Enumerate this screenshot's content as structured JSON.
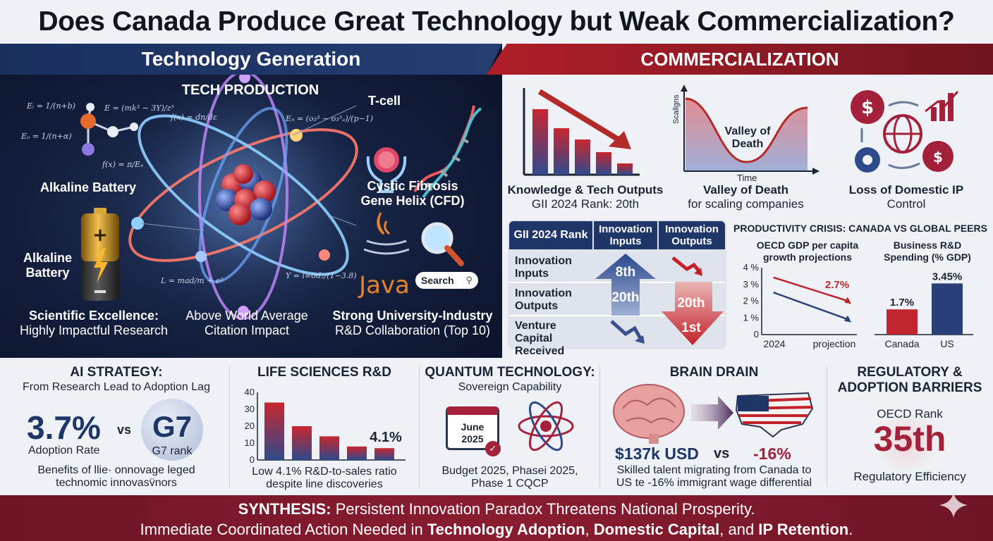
{
  "title": "Does Canada Produce Great Technology but Weak Commercialization?",
  "left": {
    "header": "Technology Generation",
    "tech_production": "TECH PRODUCTION",
    "tcell": "T-cell",
    "alkaline_battery_1": "Alkaline Battery",
    "alkaline_battery_2": "Alkaline Battery",
    "cystic_fibrosis": "Cystic Fibrosis Gene Helix (CFD)",
    "java": "Java",
    "search": "Search",
    "formulas": [
      "E_i = 1/(n+b)",
      "E = mk³ − 3Y / z³",
      "f(x) = dn/dε",
      "E_o = 1/(n+α)",
      "f(x) = π/E_e",
      "E_n = o₃³ − o₃³ₐ / p − 1",
      "L = mad/m + e²",
      "Y = l ∞ 0d₂ / (1 − 3.8)"
    ],
    "bottom": [
      {
        "line1": "Scientific Excellence:",
        "line2": "Highly Impactful Research"
      },
      {
        "line1": "Above World Average",
        "line2": "Citation Impact"
      },
      {
        "line1": "Strong University-Industry",
        "line2": "R&D Collaboration (Top 10)"
      }
    ]
  },
  "right": {
    "header": "COMMERCIALIZATION",
    "knowledge": {
      "title": "Knowledge & Tech Outputs",
      "sub": "GII 2024 Rank: 20th"
    },
    "valley": {
      "title": "Valley of Death",
      "sub": "for scaling companies",
      "label": "Valley of Death",
      "ylabel": "Scallgns",
      "xlabel": "Time"
    },
    "ip": {
      "title": "Loss of Domestic IP",
      "sub": "Control"
    },
    "gii_table": {
      "headers": [
        "GII 2024 Rank",
        "Innovation Inputs",
        "Innovation Outputs"
      ],
      "rows": [
        {
          "label": "Innovation Inputs",
          "inputs": "8th",
          "outputs": ""
        },
        {
          "label": "Innovation Outputs",
          "inputs": "20th",
          "outputs": "20th"
        },
        {
          "label": "Venture Capital Received",
          "inputs": "",
          "outputs": "1st"
        }
      ]
    },
    "productivity": {
      "title": "PRODUCTIVITY CRISIS: CANADA VS GLOBAL PEERS",
      "gdp_title": "OECD GDP per capita growth projections",
      "rd_title": "Business R&D Spending (% GDP)"
    }
  },
  "chart_data": [
    {
      "type": "line",
      "title": "OECD GDP per capita growth projections",
      "categories": [
        "2024",
        "projection"
      ],
      "yticks": [
        "0",
        "1 %",
        "2 %",
        "3 %",
        "4 %"
      ],
      "ylim": [
        0,
        4
      ],
      "series": [
        {
          "values": [
            3.4,
            2.0
          ],
          "color": "#c0262f"
        },
        {
          "values": [
            2.5,
            0.9
          ],
          "color": "#2b3f7a"
        }
      ],
      "annotation": "2.7%",
      "annotation_value": 2.7
    },
    {
      "type": "bar",
      "title": "Business R&D Spending (% GDP)",
      "categories": [
        "Canada",
        "US"
      ],
      "values": [
        1.7,
        3.45
      ],
      "labels": [
        "1.7%",
        "3.45%"
      ],
      "colors": [
        "#c0262f",
        "#2b3f7a"
      ],
      "ylim": [
        0,
        3.8
      ]
    },
    {
      "type": "bar",
      "title": "LIFE SCIENCES R&D",
      "categories": [
        "",
        "",
        "",
        "",
        ""
      ],
      "values": [
        34,
        20,
        14,
        8,
        7
      ],
      "yticks": [
        "0",
        "10",
        "20",
        "30",
        "40"
      ],
      "ylim": [
        0,
        40
      ],
      "annotation": "4.1%"
    }
  ],
  "bottom": {
    "ai": {
      "title": "AI STRATEGY:",
      "sub": "From Research Lead to Adoption Lag",
      "big": "3.7%",
      "big_label": "Adoption Rate",
      "vs": "vs",
      "g7": "G7",
      "g7_label": "G7 rank",
      "note1": "Benefits of llie· onnovage leged",
      "note2": "technomic innovasv̈nors"
    },
    "life": {
      "title": "LIFE SCIENCES R&D",
      "note1": "Low 4.1% R&D-to-sales ratio",
      "note2": "despite line discoveries"
    },
    "quantum": {
      "title": "QUANTUM TECHNOLOGY:",
      "sub": "Sovereign Capability",
      "cal1": "June",
      "cal2": "2025",
      "note1": "Budget 2025, Phasei 2025,",
      "note2": "Phase 1 CQCP"
    },
    "brain": {
      "title": "BRAIN DRAIN",
      "salary": "$137k USD",
      "vs": "vs",
      "diff": "-16%",
      "note1": "Skilled talent migrating from Canada to",
      "note2": "US te -16% immigrant wage differential"
    },
    "reg": {
      "title1": "REGULATORY &",
      "title2": "ADOPTION BARRIERS",
      "rank_label": "OECD Rank",
      "rank": "35th",
      "foot": "Regulatory Efficiency"
    }
  },
  "synthesis": {
    "lead": "SYNTHESIS:",
    "line1": " Persistent Innovation Paradox Threatens National Prosperity.",
    "line2a": "Immediate Coordinated Action Needed in ",
    "b1": "Technology Adoption",
    "c1": ", ",
    "b2": "Domestic Capital",
    "c2": ", and ",
    "b3": "IP Retention",
    "end": "."
  }
}
